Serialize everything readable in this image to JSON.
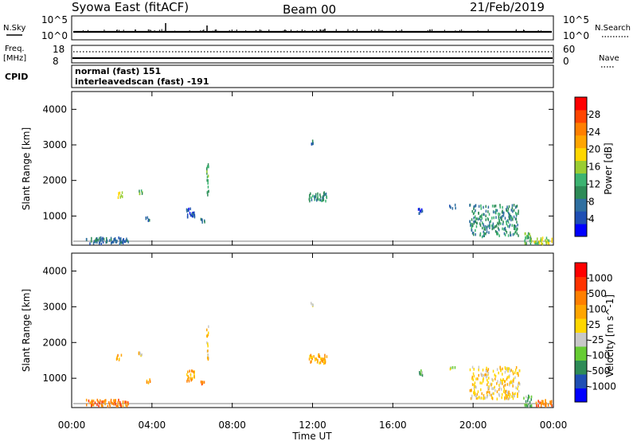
{
  "header": {
    "station": "Syowa East (fitACF)",
    "beam": "Beam 00",
    "date": "21/Feb/2019"
  },
  "left_labels": {
    "nsky": "N.Sky",
    "freq_line1": "Freq.",
    "freq_line2": "[MHz]",
    "cpid": "CPID"
  },
  "right_labels": {
    "nsearch": "N.Search",
    "nave": "Nave"
  },
  "noise_axis": {
    "left_top": "10^5",
    "left_bottom": "10^0",
    "right_top": "10^5",
    "right_bottom": "10^0"
  },
  "freq_axis": {
    "left_top": "18",
    "left_bottom": "8",
    "right_top": "60",
    "right_bottom": "0"
  },
  "cpid_lines": [
    "normal (fast) 151",
    "interleavedscan (fast) -191"
  ],
  "chart_data": [
    {
      "type": "heatmap",
      "panel": "power",
      "ylabel": "Slant Range [km]",
      "ylim": [
        180,
        4500
      ],
      "y_ticks": [
        "1000",
        "2000",
        "3000",
        "4000"
      ],
      "xlim_hours": [
        0,
        24
      ],
      "x_ticks": [
        "00:00",
        "04:00",
        "08:00",
        "12:00",
        "16:00",
        "20:00",
        "00:00"
      ],
      "xlabel": "Time UT",
      "colorbar": {
        "label": "Power [dB]",
        "levels": [
          "4",
          "8",
          "12",
          "16",
          "20",
          "24",
          "28"
        ],
        "colors": [
          "#0000ff",
          "#1f4fb4",
          "#2f6fa0",
          "#2e8b57",
          "#3cb371",
          "#9acd32",
          "#ffd700",
          "#ffa500",
          "#ff7f00",
          "#ff4500",
          "#ff0000"
        ]
      },
      "echo_regions": [
        {
          "t": [
            0.7,
            2.8
          ],
          "r": [
            250,
            430
          ],
          "level": 2
        },
        {
          "t": [
            2.2,
            2.5
          ],
          "r": [
            1550,
            1700
          ],
          "level": 5
        },
        {
          "t": [
            3.3,
            3.5
          ],
          "r": [
            1650,
            1750
          ],
          "level": 4
        },
        {
          "t": [
            3.6,
            3.9
          ],
          "r": [
            900,
            1000
          ],
          "level": 2
        },
        {
          "t": [
            5.7,
            6.1
          ],
          "r": [
            950,
            1250
          ],
          "level": 1
        },
        {
          "t": [
            6.4,
            6.6
          ],
          "r": [
            850,
            950
          ],
          "level": 2
        },
        {
          "t": [
            6.7,
            6.8
          ],
          "r": [
            1550,
            2500
          ],
          "level": 4
        },
        {
          "t": [
            11.8,
            12.7
          ],
          "r": [
            1450,
            1700
          ],
          "level": 3
        },
        {
          "t": [
            11.9,
            12.0
          ],
          "r": [
            3050,
            3150
          ],
          "level": 2
        },
        {
          "t": [
            17.2,
            17.5
          ],
          "r": [
            1100,
            1250
          ],
          "level": 1
        },
        {
          "t": [
            18.8,
            19.1
          ],
          "r": [
            1250,
            1350
          ],
          "level": 1
        },
        {
          "t": [
            19.8,
            22.3
          ],
          "r": [
            450,
            1350
          ],
          "level": 3
        },
        {
          "t": [
            22.5,
            22.9
          ],
          "r": [
            250,
            550
          ],
          "level": 4
        },
        {
          "t": [
            23.0,
            23.9
          ],
          "r": [
            250,
            420
          ],
          "level": 5
        }
      ]
    },
    {
      "type": "heatmap",
      "panel": "velocity",
      "ylabel": "Slant Range [km]",
      "ylim": [
        180,
        4500
      ],
      "y_ticks": [
        "1000",
        "2000",
        "3000",
        "4000"
      ],
      "xlim_hours": [
        0,
        24
      ],
      "x_ticks": [
        "00:00",
        "04:00",
        "08:00",
        "12:00",
        "16:00",
        "20:00",
        "00:00"
      ],
      "xlabel": "Time UT",
      "colorbar": {
        "label": "Velocity [m s^-1]",
        "levels": [
          "1000",
          "500",
          "100",
          "25",
          "-25",
          "-100",
          "-500",
          "-1000"
        ],
        "colors": [
          "#0000ff",
          "#1f4fb4",
          "#2e8b57",
          "#66cc33",
          "#c8c8c8",
          "#ffd700",
          "#ffa500",
          "#ff7f00",
          "#ff3300",
          "#ff0000"
        ]
      },
      "echo_regions": [
        {
          "t": [
            0.7,
            2.8
          ],
          "r": [
            250,
            430
          ],
          "level": 7
        },
        {
          "t": [
            2.2,
            2.5
          ],
          "r": [
            1550,
            1700
          ],
          "level": 6
        },
        {
          "t": [
            3.3,
            3.5
          ],
          "r": [
            1650,
            1750
          ],
          "level": 5
        },
        {
          "t": [
            3.6,
            3.9
          ],
          "r": [
            900,
            1000
          ],
          "level": 6
        },
        {
          "t": [
            5.7,
            6.1
          ],
          "r": [
            950,
            1250
          ],
          "level": 6
        },
        {
          "t": [
            6.4,
            6.6
          ],
          "r": [
            850,
            950
          ],
          "level": 7
        },
        {
          "t": [
            6.7,
            6.8
          ],
          "r": [
            1550,
            2500
          ],
          "level": 5
        },
        {
          "t": [
            11.8,
            12.7
          ],
          "r": [
            1450,
            1700
          ],
          "level": 6
        },
        {
          "t": [
            11.9,
            12.0
          ],
          "r": [
            3050,
            3150
          ],
          "level": 4
        },
        {
          "t": [
            17.2,
            17.5
          ],
          "r": [
            1100,
            1250
          ],
          "level": 3
        },
        {
          "t": [
            18.8,
            19.1
          ],
          "r": [
            1250,
            1350
          ],
          "level": 4
        },
        {
          "t": [
            19.8,
            22.3
          ],
          "r": [
            450,
            1350
          ],
          "level": 5
        },
        {
          "t": [
            22.5,
            22.9
          ],
          "r": [
            250,
            550
          ],
          "level": 3
        },
        {
          "t": [
            23.0,
            23.9
          ],
          "r": [
            250,
            420
          ],
          "level": 7
        }
      ]
    }
  ]
}
